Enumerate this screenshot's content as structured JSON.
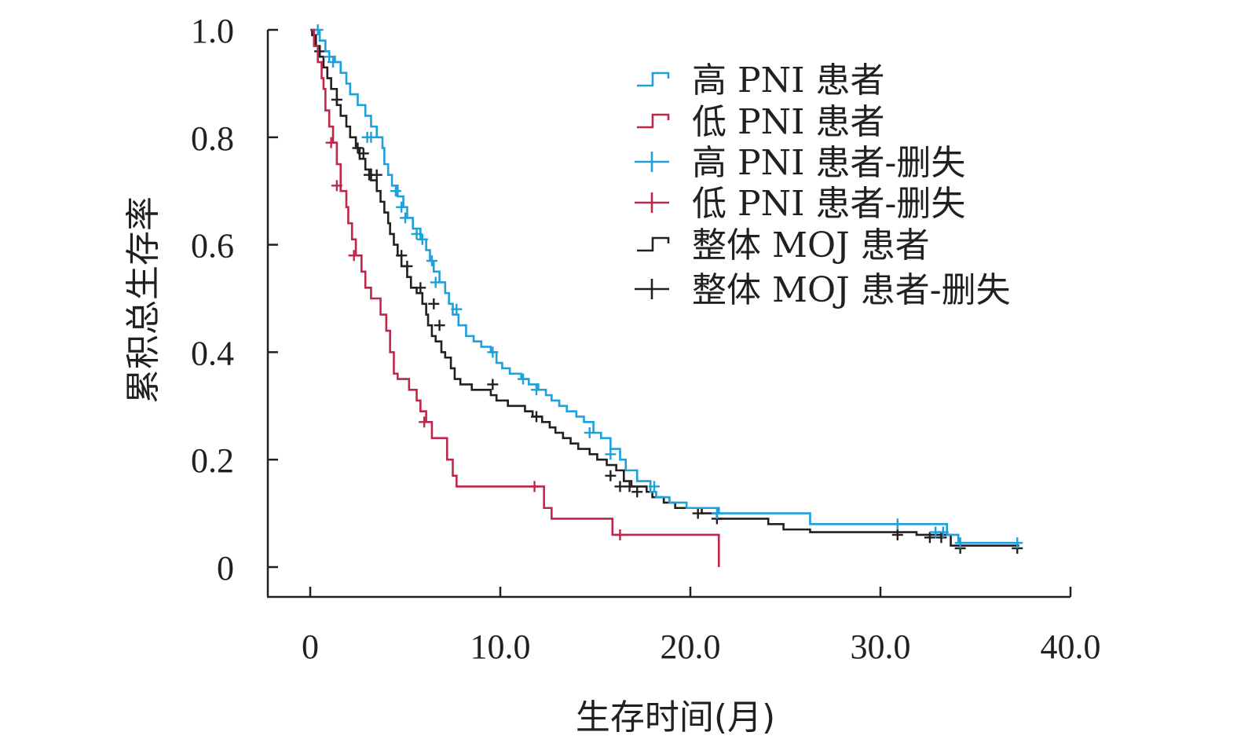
{
  "chart_data": {
    "type": "line",
    "subtype": "kaplan-meier",
    "xlabel": "生存时间(月)",
    "ylabel": "累积总生存率",
    "xlim": [
      -2.3,
      40.0
    ],
    "ylim": [
      -0.056,
      1.0
    ],
    "xticks": [
      0,
      10,
      20,
      30,
      40
    ],
    "xtick_labels": [
      "0",
      "10.0",
      "20.0",
      "30.0",
      "40.0"
    ],
    "yticks": [
      0,
      0.2,
      0.4,
      0.6,
      0.8,
      1.0
    ],
    "ytick_labels": [
      "0",
      "0.2",
      "0.4",
      "0.6",
      "0.8",
      "1.0"
    ],
    "legend": {
      "placement": "top-right",
      "entries": [
        {
          "label": "高 PNI 患者",
          "marker": "step",
          "color": "#1ea0db"
        },
        {
          "label": "低 PNI 患者",
          "marker": "step",
          "color": "#c0264a"
        },
        {
          "label": "高 PNI 患者-删失",
          "marker": "plus",
          "color": "#1ea0db"
        },
        {
          "label": "低 PNI 患者-删失",
          "marker": "plus",
          "color": "#c0264a"
        },
        {
          "label": "整体 MOJ 患者",
          "marker": "step",
          "color": "#231f20"
        },
        {
          "label": "整体 MOJ 患者-删失",
          "marker": "plus",
          "color": "#231f20"
        }
      ]
    },
    "series": [
      {
        "name": "高 PNI 患者",
        "color": "#1ea0db",
        "steps": [
          [
            0,
            1.0
          ],
          [
            0.3,
            1.0
          ],
          [
            0.5,
            0.98
          ],
          [
            0.8,
            0.96
          ],
          [
            1.0,
            0.95
          ],
          [
            1.3,
            0.94
          ],
          [
            1.6,
            0.92
          ],
          [
            1.9,
            0.9
          ],
          [
            2.1,
            0.88
          ],
          [
            2.5,
            0.86
          ],
          [
            2.9,
            0.84
          ],
          [
            3.2,
            0.82
          ],
          [
            3.5,
            0.8
          ],
          [
            3.8,
            0.78
          ],
          [
            3.9,
            0.75
          ],
          [
            4.1,
            0.73
          ],
          [
            4.3,
            0.71
          ],
          [
            4.6,
            0.69
          ],
          [
            4.9,
            0.67
          ],
          [
            5.1,
            0.65
          ],
          [
            5.4,
            0.63
          ],
          [
            5.8,
            0.61
          ],
          [
            6.1,
            0.59
          ],
          [
            6.3,
            0.57
          ],
          [
            6.5,
            0.55
          ],
          [
            6.8,
            0.53
          ],
          [
            7.1,
            0.51
          ],
          [
            7.3,
            0.49
          ],
          [
            7.5,
            0.47
          ],
          [
            7.8,
            0.45
          ],
          [
            8.2,
            0.43
          ],
          [
            8.6,
            0.42
          ],
          [
            9.0,
            0.41
          ],
          [
            9.5,
            0.4
          ],
          [
            9.8,
            0.38
          ],
          [
            10.1,
            0.37
          ],
          [
            10.5,
            0.36
          ],
          [
            11.1,
            0.35
          ],
          [
            11.5,
            0.34
          ],
          [
            12.0,
            0.33
          ],
          [
            12.4,
            0.32
          ],
          [
            12.7,
            0.31
          ],
          [
            13.1,
            0.3
          ],
          [
            13.5,
            0.29
          ],
          [
            14.0,
            0.28
          ],
          [
            14.4,
            0.27
          ],
          [
            14.9,
            0.25
          ],
          [
            15.3,
            0.24
          ],
          [
            15.8,
            0.22
          ],
          [
            16.3,
            0.2
          ],
          [
            16.6,
            0.18
          ],
          [
            17.2,
            0.16
          ],
          [
            17.9,
            0.14
          ],
          [
            18.2,
            0.13
          ],
          [
            18.9,
            0.12
          ],
          [
            19.8,
            0.11
          ],
          [
            21.5,
            0.1
          ],
          [
            26.3,
            0.08
          ],
          [
            33.5,
            0.06
          ],
          [
            34.1,
            0.045
          ],
          [
            37.3,
            0.045
          ]
        ],
        "censored": [
          [
            0.4,
            1.0
          ],
          [
            1.0,
            0.95
          ],
          [
            1.2,
            0.94
          ],
          [
            3.0,
            0.8
          ],
          [
            3.2,
            0.8
          ],
          [
            4.5,
            0.7
          ],
          [
            4.8,
            0.67
          ],
          [
            5.0,
            0.65
          ],
          [
            5.6,
            0.62
          ],
          [
            5.9,
            0.61
          ],
          [
            6.4,
            0.57
          ],
          [
            6.6,
            0.53
          ],
          [
            7.7,
            0.48
          ],
          [
            9.6,
            0.4
          ],
          [
            11.2,
            0.35
          ],
          [
            11.9,
            0.33
          ],
          [
            14.7,
            0.25
          ],
          [
            15.8,
            0.21
          ],
          [
            18.1,
            0.15
          ],
          [
            21.4,
            0.1
          ],
          [
            30.9,
            0.08
          ],
          [
            32.9,
            0.065
          ],
          [
            33.3,
            0.065
          ],
          [
            34.2,
            0.045
          ],
          [
            37.2,
            0.045
          ]
        ]
      },
      {
        "name": "低 PNI 患者",
        "color": "#c0264a",
        "steps": [
          [
            0,
            1.0
          ],
          [
            0.2,
            0.97
          ],
          [
            0.4,
            0.94
          ],
          [
            0.6,
            0.91
          ],
          [
            0.7,
            0.89
          ],
          [
            0.8,
            0.85
          ],
          [
            1.0,
            0.82
          ],
          [
            1.2,
            0.79
          ],
          [
            1.4,
            0.75
          ],
          [
            1.6,
            0.7
          ],
          [
            1.9,
            0.67
          ],
          [
            2.0,
            0.64
          ],
          [
            2.2,
            0.61
          ],
          [
            2.4,
            0.58
          ],
          [
            2.7,
            0.55
          ],
          [
            2.9,
            0.52
          ],
          [
            3.2,
            0.5
          ],
          [
            3.7,
            0.47
          ],
          [
            4.0,
            0.44
          ],
          [
            4.2,
            0.4
          ],
          [
            4.4,
            0.36
          ],
          [
            4.6,
            0.35
          ],
          [
            5.2,
            0.33
          ],
          [
            5.6,
            0.31
          ],
          [
            5.8,
            0.29
          ],
          [
            6.1,
            0.27
          ],
          [
            6.4,
            0.24
          ],
          [
            7.2,
            0.2
          ],
          [
            7.5,
            0.17
          ],
          [
            7.7,
            0.15
          ],
          [
            11.9,
            0.15
          ],
          [
            12.3,
            0.11
          ],
          [
            12.7,
            0.09
          ],
          [
            15.9,
            0.06
          ],
          [
            21.5,
            0.06
          ],
          [
            21.5,
            0.0
          ]
        ],
        "censored": [
          [
            1.1,
            0.79
          ],
          [
            1.4,
            0.71
          ],
          [
            2.3,
            0.58
          ],
          [
            6.0,
            0.27
          ],
          [
            11.8,
            0.15
          ],
          [
            16.3,
            0.06
          ]
        ]
      },
      {
        "name": "整体 MOJ 患者",
        "color": "#231f20",
        "steps": [
          [
            0,
            1.0
          ],
          [
            0.1,
            0.99
          ],
          [
            0.3,
            0.97
          ],
          [
            0.5,
            0.95
          ],
          [
            0.7,
            0.93
          ],
          [
            0.9,
            0.91
          ],
          [
            1.1,
            0.89
          ],
          [
            1.4,
            0.86
          ],
          [
            1.6,
            0.84
          ],
          [
            1.9,
            0.82
          ],
          [
            2.1,
            0.8
          ],
          [
            2.4,
            0.78
          ],
          [
            2.6,
            0.76
          ],
          [
            2.9,
            0.74
          ],
          [
            3.2,
            0.72
          ],
          [
            3.5,
            0.7
          ],
          [
            3.7,
            0.68
          ],
          [
            3.9,
            0.66
          ],
          [
            4.1,
            0.64
          ],
          [
            4.2,
            0.62
          ],
          [
            4.4,
            0.6
          ],
          [
            4.6,
            0.58
          ],
          [
            4.8,
            0.56
          ],
          [
            5.1,
            0.54
          ],
          [
            5.3,
            0.52
          ],
          [
            5.6,
            0.51
          ],
          [
            5.9,
            0.49
          ],
          [
            6.1,
            0.47
          ],
          [
            6.2,
            0.45
          ],
          [
            6.4,
            0.43
          ],
          [
            6.6,
            0.42
          ],
          [
            6.9,
            0.4
          ],
          [
            7.1,
            0.39
          ],
          [
            7.4,
            0.37
          ],
          [
            7.6,
            0.35
          ],
          [
            7.9,
            0.34
          ],
          [
            8.5,
            0.33
          ],
          [
            9.5,
            0.32
          ],
          [
            9.8,
            0.31
          ],
          [
            10.4,
            0.3
          ],
          [
            11.3,
            0.29
          ],
          [
            11.7,
            0.28
          ],
          [
            12.2,
            0.27
          ],
          [
            12.6,
            0.26
          ],
          [
            12.9,
            0.25
          ],
          [
            13.3,
            0.24
          ],
          [
            13.7,
            0.23
          ],
          [
            14.1,
            0.22
          ],
          [
            14.7,
            0.21
          ],
          [
            15.1,
            0.2
          ],
          [
            15.6,
            0.19
          ],
          [
            16.1,
            0.18
          ],
          [
            16.5,
            0.16
          ],
          [
            16.9,
            0.15
          ],
          [
            17.7,
            0.14
          ],
          [
            18.0,
            0.13
          ],
          [
            18.6,
            0.12
          ],
          [
            19.2,
            0.11
          ],
          [
            20.6,
            0.1
          ],
          [
            21.4,
            0.09
          ],
          [
            24.1,
            0.08
          ],
          [
            24.9,
            0.07
          ],
          [
            26.3,
            0.065
          ],
          [
            31.9,
            0.06
          ],
          [
            33.7,
            0.04
          ],
          [
            37.3,
            0.04
          ]
        ],
        "censored": [
          [
            0.5,
            0.96
          ],
          [
            1.4,
            0.87
          ],
          [
            2.5,
            0.78
          ],
          [
            2.8,
            0.77
          ],
          [
            3.1,
            0.73
          ],
          [
            3.5,
            0.73
          ],
          [
            4.8,
            0.58
          ],
          [
            5.1,
            0.56
          ],
          [
            5.8,
            0.52
          ],
          [
            6.5,
            0.49
          ],
          [
            6.8,
            0.45
          ],
          [
            9.6,
            0.34
          ],
          [
            11.9,
            0.28
          ],
          [
            15.8,
            0.17
          ],
          [
            16.3,
            0.15
          ],
          [
            16.8,
            0.15
          ],
          [
            17.2,
            0.14
          ],
          [
            20.4,
            0.1
          ],
          [
            21.4,
            0.09
          ],
          [
            30.9,
            0.06
          ],
          [
            32.6,
            0.055
          ],
          [
            33.2,
            0.055
          ],
          [
            34.2,
            0.035
          ],
          [
            37.2,
            0.035
          ]
        ]
      }
    ]
  }
}
